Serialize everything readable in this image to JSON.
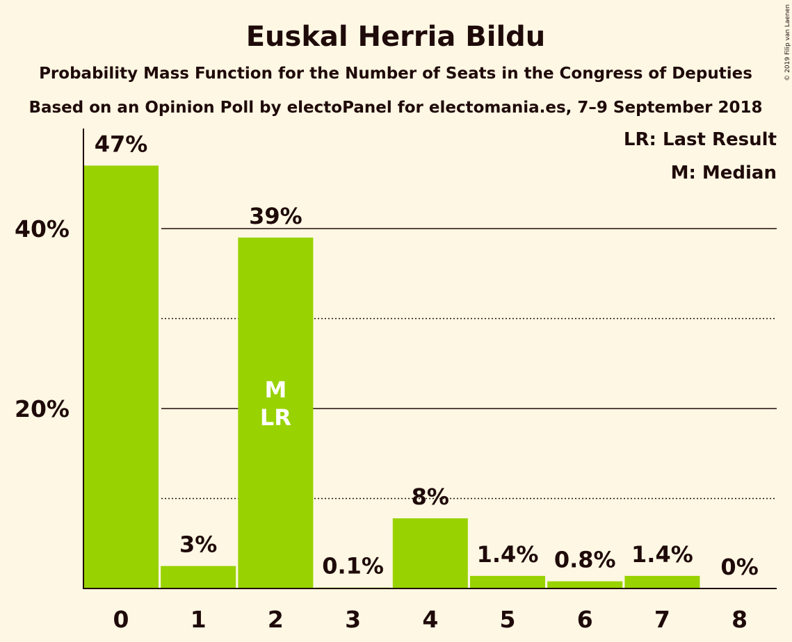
{
  "chart_data": {
    "type": "bar",
    "title": "Euskal Herria Bildu",
    "subtitle_lines": [
      "Probability Mass Function for the Number of Seats in the Congress of Deputies",
      "Based on an Opinion Poll by electoPanel for electomania.es, 7–9 September 2018"
    ],
    "categories": [
      "0",
      "1",
      "2",
      "3",
      "4",
      "5",
      "6",
      "7",
      "8"
    ],
    "values": [
      47,
      2.5,
      39,
      0.1,
      7.8,
      1.4,
      0.8,
      1.4,
      0
    ],
    "data_labels": [
      "47%",
      "3%",
      "39%",
      "0.1%",
      "8%",
      "1.4%",
      "0.8%",
      "1.4%",
      "0%"
    ],
    "ylim": [
      0,
      51
    ],
    "y_major_ticks": [
      20,
      40
    ],
    "y_major_tick_labels": [
      "20%",
      "40%"
    ],
    "y_minor_gridlines": [
      10,
      30
    ],
    "bar_markers": [
      {
        "category": "2",
        "lines": [
          "M",
          "LR"
        ]
      }
    ],
    "legend": {
      "placement": "top-right",
      "entries": [
        "LR: Last Result",
        "M: Median"
      ]
    },
    "bar_color": "#98d200",
    "background_color": "#fdf7e3",
    "text_color": "#1f0a0a"
  },
  "copyright": "© 2019 Filip van Laenen"
}
